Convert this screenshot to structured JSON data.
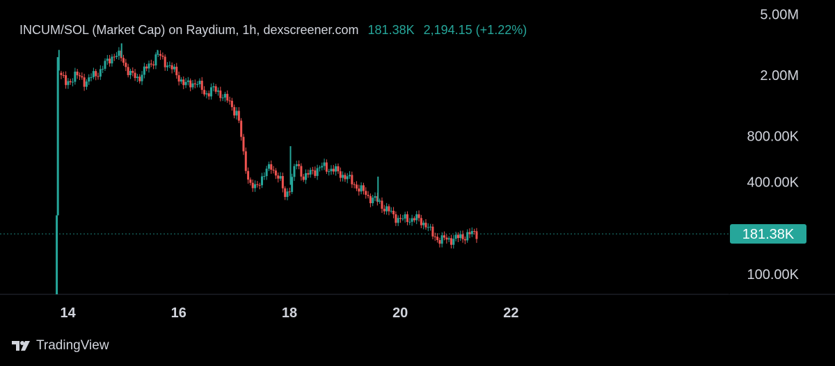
{
  "header": {
    "title": "INCUM/SOL (Market Cap) on Raydium, 1h, dexscreener.com",
    "last_value": "181.38K",
    "change": "2,194.15 (+1.22%)"
  },
  "price_tag": "181.38K",
  "brand": {
    "name": "TradingView",
    "icon": "tradingview-logo-icon"
  },
  "colors": {
    "up": "#26a69a",
    "down": "#ef5350",
    "background": "#000000",
    "text": "#d1d4dc"
  },
  "chart_data": {
    "type": "candlestick",
    "y_scale": "log",
    "ylim": [
      70000,
      5200000
    ],
    "y_ticks": [
      {
        "value": 5000000,
        "label": "5.00M"
      },
      {
        "value": 2000000,
        "label": "2.00M"
      },
      {
        "value": 800000,
        "label": "800.00K"
      },
      {
        "value": 400000,
        "label": "400.00K"
      },
      {
        "value": 100000,
        "label": "100.00K"
      }
    ],
    "xlim": [
      13.0,
      23.0
    ],
    "x_unit": "day of month (hourly candles)",
    "x_ticks": [
      {
        "value": 14,
        "label": "14"
      },
      {
        "value": 16,
        "label": "16"
      },
      {
        "value": 18,
        "label": "18"
      },
      {
        "value": 20,
        "label": "20"
      },
      {
        "value": 22,
        "label": "22"
      }
    ],
    "current_value": 181380,
    "price_line": 181380,
    "anchors": [
      [
        13.8,
        2200000
      ],
      [
        13.95,
        1700000
      ],
      [
        14.1,
        2000000
      ],
      [
        14.3,
        1800000
      ],
      [
        14.55,
        2100000
      ],
      [
        14.8,
        2700000
      ],
      [
        14.95,
        2600000
      ],
      [
        15.1,
        2000000
      ],
      [
        15.25,
        1900000
      ],
      [
        15.45,
        2300000
      ],
      [
        15.6,
        2700000
      ],
      [
        15.75,
        2400000
      ],
      [
        15.95,
        2000000
      ],
      [
        16.1,
        1700000
      ],
      [
        16.3,
        1800000
      ],
      [
        16.45,
        1500000
      ],
      [
        16.6,
        1600000
      ],
      [
        16.75,
        1500000
      ],
      [
        16.9,
        1300000
      ],
      [
        17.05,
        1100000
      ],
      [
        17.15,
        600000
      ],
      [
        17.25,
        400000
      ],
      [
        17.35,
        350000
      ],
      [
        17.5,
        440000
      ],
      [
        17.65,
        500000
      ],
      [
        17.8,
        420000
      ],
      [
        17.9,
        320000
      ],
      [
        18.0,
        380000
      ],
      [
        18.1,
        530000
      ],
      [
        18.25,
        420000
      ],
      [
        18.4,
        470000
      ],
      [
        18.6,
        500000
      ],
      [
        18.8,
        470000
      ],
      [
        19.0,
        430000
      ],
      [
        19.2,
        370000
      ],
      [
        19.4,
        320000
      ],
      [
        19.55,
        300000
      ],
      [
        19.7,
        270000
      ],
      [
        19.85,
        240000
      ],
      [
        20.0,
        225000
      ],
      [
        20.25,
        230000
      ],
      [
        20.45,
        210000
      ],
      [
        20.55,
        180000
      ],
      [
        20.7,
        166000
      ],
      [
        20.9,
        168000
      ],
      [
        21.05,
        171000
      ],
      [
        21.2,
        180000
      ],
      [
        21.35,
        183000
      ]
    ],
    "spikes": [
      [
        13.82,
        2900000
      ],
      [
        14.95,
        3200000
      ],
      [
        15.6,
        2900000
      ],
      [
        18.0,
        680000
      ],
      [
        19.58,
        430000
      ]
    ]
  }
}
